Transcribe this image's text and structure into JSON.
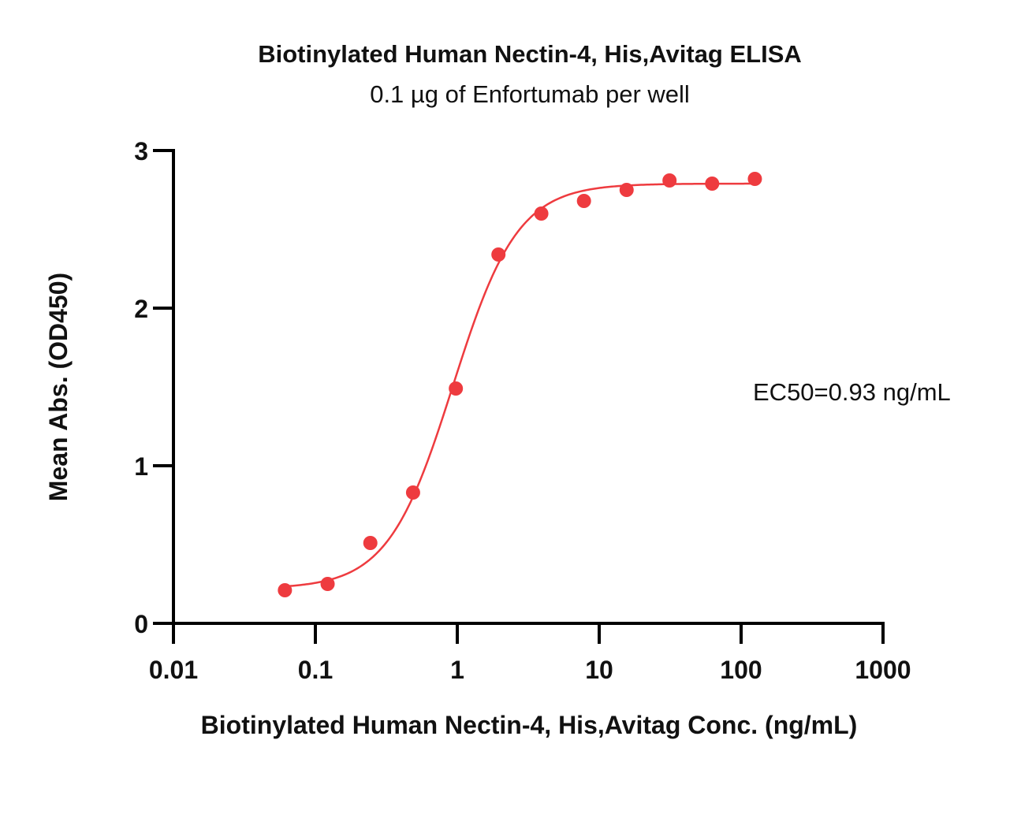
{
  "chart_data": {
    "type": "scatter",
    "title": "Biotinylated Human Nectin-4, His,Avitag ELISA",
    "subtitle": "0.1 µg of Enfortumab per well",
    "xlabel": "Biotinylated Human Nectin-4, His,Avitag Conc. (ng/mL)",
    "ylabel": "Mean Abs. (OD450)",
    "x_scale": "log",
    "xlim": [
      0.01,
      1000
    ],
    "ylim": [
      0,
      3
    ],
    "x_ticks": [
      0.01,
      0.1,
      1,
      10,
      100,
      1000
    ],
    "x_tick_labels": [
      "0.01",
      "0.1",
      "1",
      "10",
      "100",
      "1000"
    ],
    "y_ticks": [
      0,
      1,
      2,
      3
    ],
    "y_tick_labels": [
      "0",
      "1",
      "2",
      "3"
    ],
    "grid": false,
    "color": "#ee3b3f",
    "series": [
      {
        "x": [
          0.061,
          0.122,
          0.244,
          0.488,
          0.977,
          1.95,
          3.91,
          7.81,
          15.6,
          31.3,
          62.5,
          125
        ],
        "y": [
          0.21,
          0.25,
          0.51,
          0.83,
          1.49,
          2.34,
          2.6,
          2.68,
          2.75,
          2.81,
          2.79,
          2.82
        ]
      }
    ],
    "fit": {
      "model": "4PL",
      "bottom": 0.22,
      "top": 2.79,
      "ec50": 0.93,
      "hill": 1.9
    },
    "annotation": "EC50=0.93 ng/mL"
  }
}
